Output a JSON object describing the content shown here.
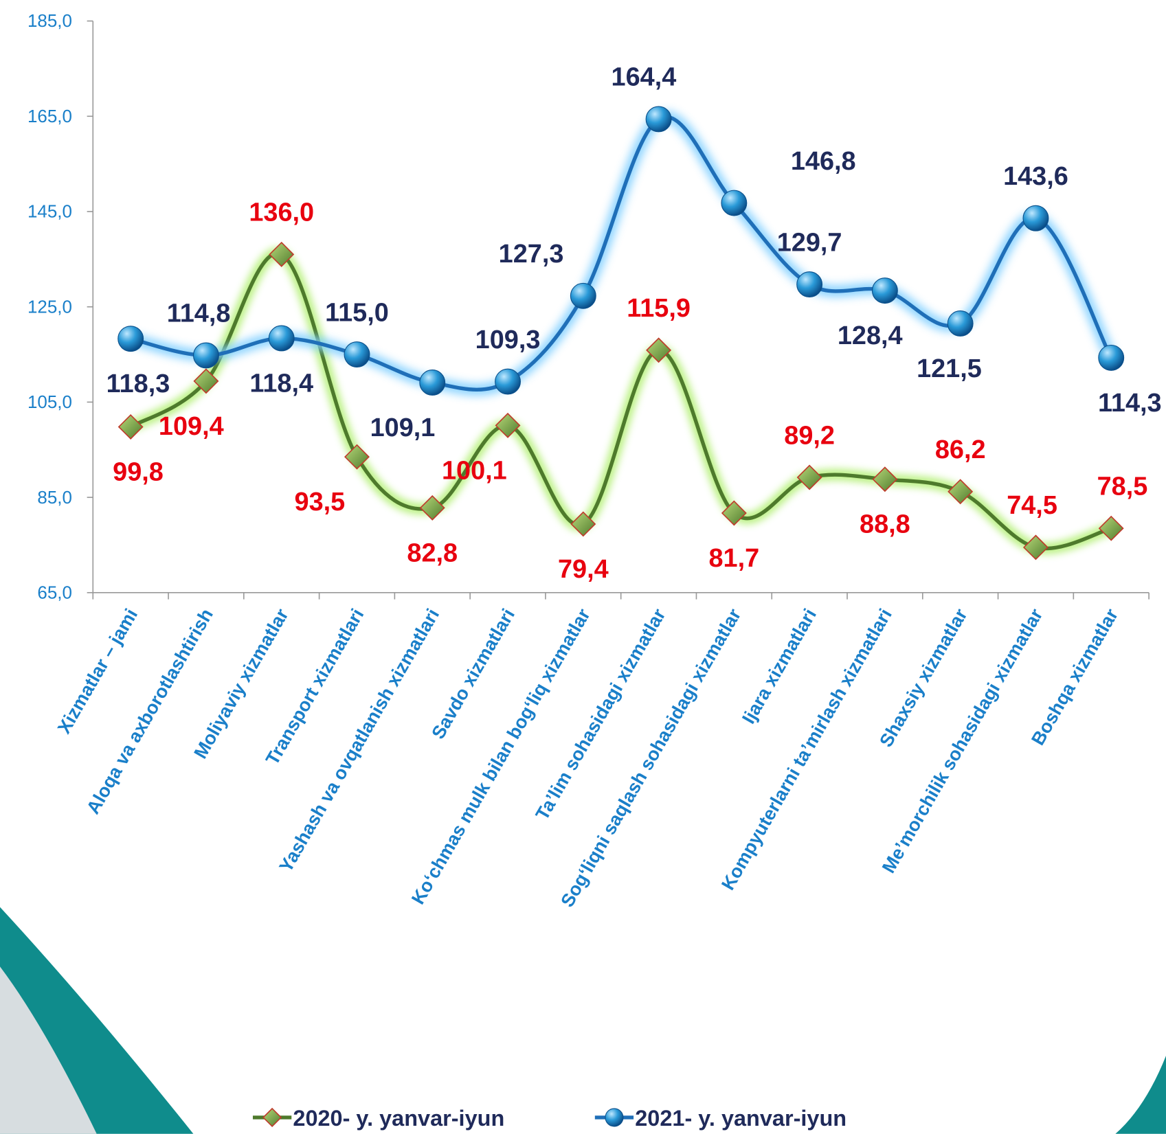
{
  "chart_data": {
    "type": "line",
    "categories": [
      "Xizmatlar – jami",
      "Aloqa va axborotlashtirish",
      "Moliyaviy xizmatlar",
      "Transport xizmatlari",
      "Yashash va ovqatlanish xizmatlari",
      "Savdo xizmatlari",
      "Ko‘chmas mulk bilan bog‘liq xizmatlar",
      "Ta’lim sohasidagi xizmatlar",
      "Sog‘liqni saqlash sohasidagi xizmatlar",
      "Ijara xizmatlari",
      "Kompyuterlarni ta’mirlash xizmatlari",
      "Shaxsiy xizmatlar",
      "Me’morchilik sohasidagi xizmatlar",
      "Boshqa xizmatlar"
    ],
    "series": [
      {
        "name": "2020- y. yanvar-iyun",
        "color": "#4e7a2c",
        "marker_color": "#8db54a",
        "label_color": "#e8000f",
        "values": [
          99.8,
          109.4,
          136.0,
          93.5,
          82.8,
          100.1,
          79.4,
          115.9,
          81.7,
          89.2,
          88.8,
          86.2,
          74.5,
          78.5
        ],
        "value_labels": [
          "99,8",
          "109,4",
          "136,0",
          "93,5",
          "82,8",
          "100,1",
          "79,4",
          "115,9",
          "81,7",
          "89,2",
          "88,8",
          "86,2",
          "74,5",
          "78,5"
        ]
      },
      {
        "name": "2021- y. yanvar-iyun",
        "color": "#1f6fb8",
        "marker_color": "#2a9ad8",
        "label_color": "#1f2a5a",
        "values": [
          118.3,
          114.8,
          118.4,
          115.0,
          109.1,
          109.3,
          127.3,
          164.4,
          146.8,
          129.7,
          128.4,
          121.5,
          143.6,
          114.3
        ],
        "value_labels": [
          "118,3",
          "114,8",
          "118,4",
          "115,0",
          "109,1",
          "109,3",
          "127,3",
          "164,4",
          "146,8",
          "129,7",
          "128,4",
          "121,5",
          "143,6",
          "114,3"
        ]
      }
    ],
    "ylim": [
      65,
      185
    ],
    "yticks": [
      {
        "value": 65,
        "label": "65,0"
      },
      {
        "value": 85,
        "label": "85,0"
      },
      {
        "value": 105,
        "label": "105,0"
      },
      {
        "value": 125,
        "label": "125,0"
      },
      {
        "value": 145,
        "label": "145,0"
      },
      {
        "value": 165,
        "label": "165,0"
      },
      {
        "value": 185,
        "label": "185,0"
      }
    ],
    "legend": "bottom"
  }
}
